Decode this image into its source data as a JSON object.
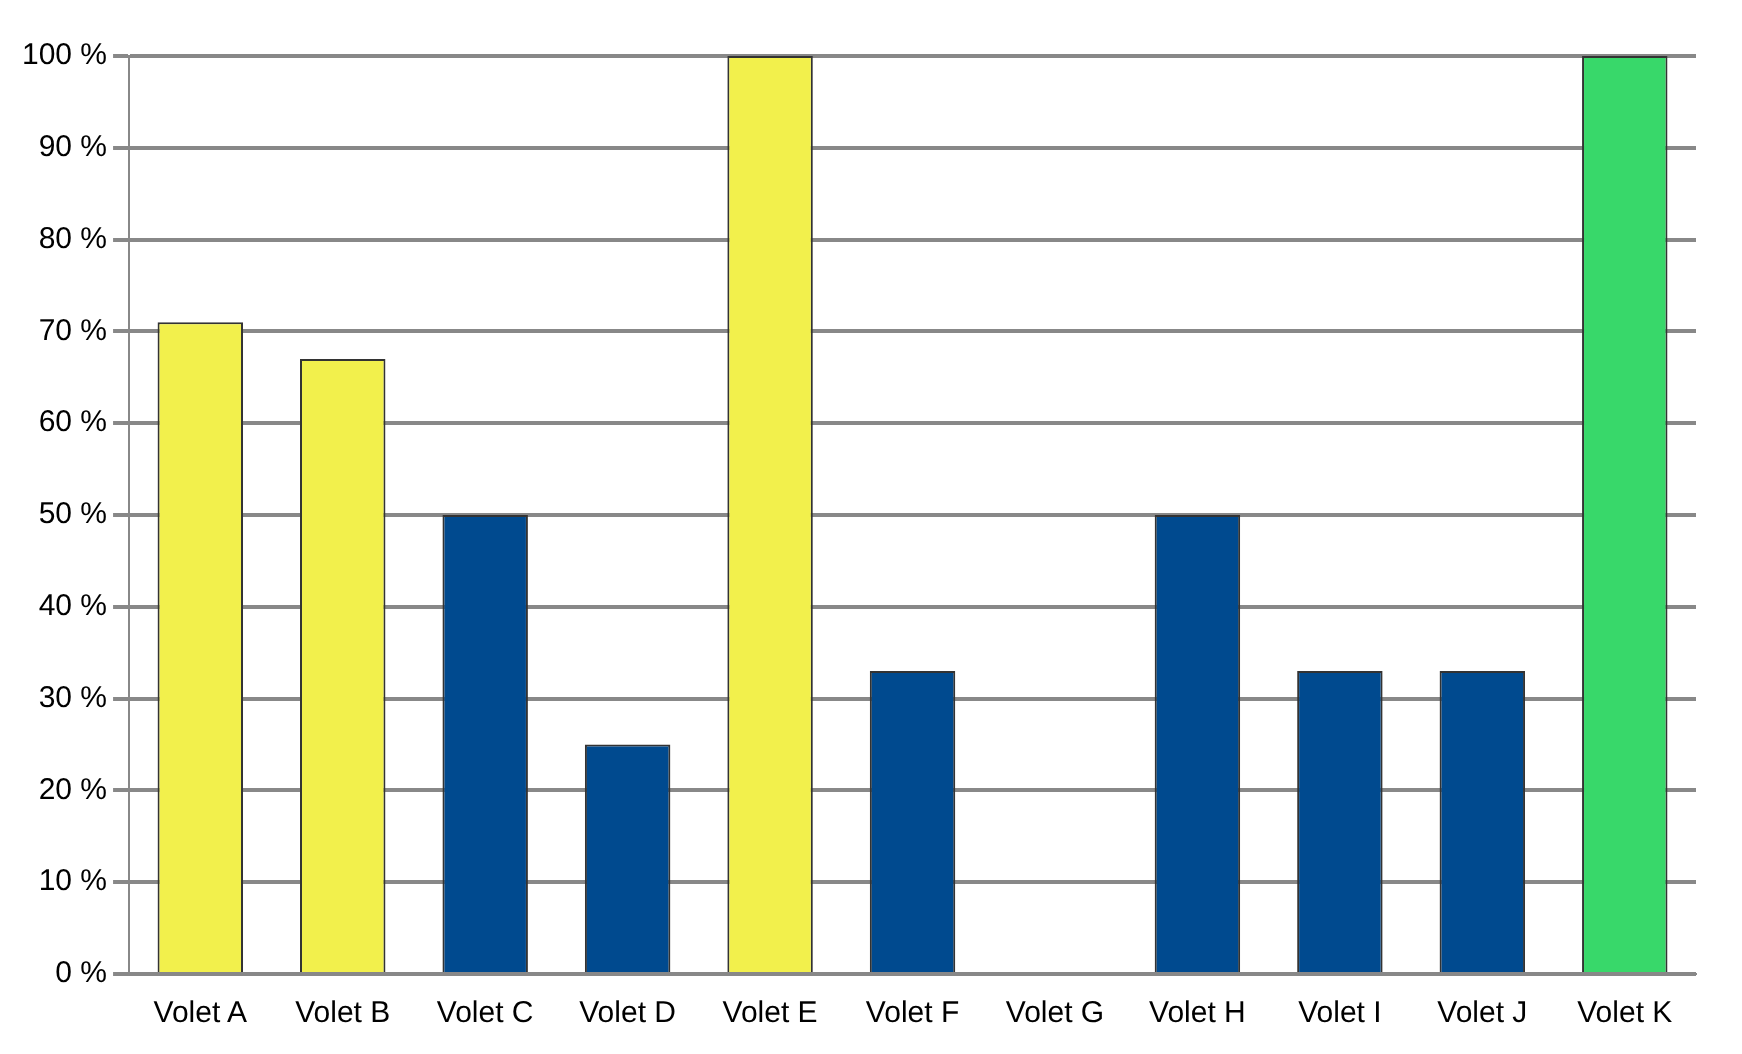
{
  "chart_data": {
    "type": "bar",
    "categories": [
      "Volet A",
      "Volet B",
      "Volet C",
      "Volet D",
      "Volet E",
      "Volet F",
      "Volet G",
      "Volet H",
      "Volet I",
      "Volet J",
      "Volet K"
    ],
    "values": [
      71,
      67,
      50,
      25,
      100,
      33,
      0,
      50,
      33,
      33,
      100
    ],
    "colors": [
      "#f2f04c",
      "#f2f04c",
      "#004a8f",
      "#004a8f",
      "#f2f04c",
      "#004a8f",
      "#004a8f",
      "#004a8f",
      "#004a8f",
      "#004a8f",
      "#38d86a"
    ],
    "ylim": [
      0,
      100
    ],
    "yticks": [
      {
        "value": 0,
        "label": "0 %"
      },
      {
        "value": 10,
        "label": "10 %"
      },
      {
        "value": 20,
        "label": "20 %"
      },
      {
        "value": 30,
        "label": "30 %"
      },
      {
        "value": 40,
        "label": "40 %"
      },
      {
        "value": 50,
        "label": "50 %"
      },
      {
        "value": 60,
        "label": "60 %"
      },
      {
        "value": 70,
        "label": "70 %"
      },
      {
        "value": 80,
        "label": "80 %"
      },
      {
        "value": 90,
        "label": "90 %"
      },
      {
        "value": 100,
        "label": "100 %"
      }
    ],
    "grid": "y",
    "legend": false
  }
}
